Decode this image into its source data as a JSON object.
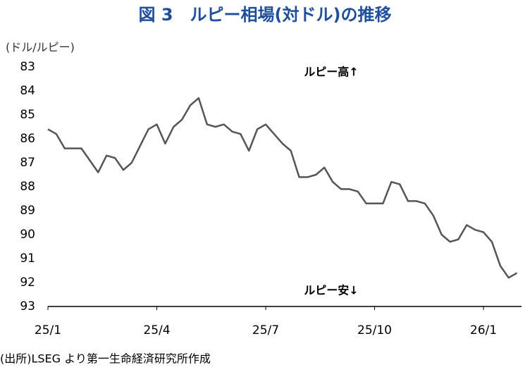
{
  "chart_data": {
    "type": "line",
    "title": "図 3　ルピー相場(対ドル)の推移",
    "y_label": "(ドル/ルピー)",
    "annotations": [
      "ルピー高↑",
      "ルピー安↓"
    ],
    "source": "(出所)LSEG より第一生命経済研究所作成",
    "categories": [
      "25/1",
      null,
      null,
      null,
      null,
      null,
      null,
      null,
      null,
      null,
      null,
      null,
      null,
      "25/4",
      null,
      null,
      null,
      null,
      null,
      null,
      null,
      null,
      null,
      null,
      null,
      null,
      "25/7",
      null,
      null,
      null,
      null,
      null,
      null,
      null,
      null,
      null,
      null,
      null,
      null,
      "25/10",
      null,
      null,
      null,
      null,
      null,
      null,
      null,
      null,
      null,
      null,
      null,
      null,
      "26/1",
      null,
      null,
      null,
      null
    ],
    "series": [
      {
        "name": "ルピー相場",
        "color": "#555555",
        "values": [
          85.6,
          85.8,
          86.4,
          86.4,
          86.4,
          86.9,
          87.4,
          86.7,
          86.8,
          87.3,
          87.0,
          86.3,
          85.6,
          85.4,
          86.2,
          85.5,
          85.2,
          84.6,
          84.3,
          85.4,
          85.5,
          85.4,
          85.7,
          85.8,
          86.5,
          85.6,
          85.4,
          85.8,
          86.2,
          86.5,
          87.6,
          87.6,
          87.5,
          87.2,
          87.8,
          88.1,
          88.1,
          88.2,
          88.7,
          88.7,
          88.7,
          87.8,
          87.9,
          88.6,
          88.6,
          88.7,
          89.2,
          90.0,
          90.3,
          90.2,
          89.6,
          89.8,
          89.9,
          90.3,
          91.3,
          91.8,
          91.6
        ]
      }
    ],
    "ylim": [
      83,
      93
    ],
    "y_inverted": true,
    "yticks": [
      83,
      84,
      85,
      86,
      87,
      88,
      89,
      90,
      91,
      92,
      93
    ],
    "grid": false
  }
}
